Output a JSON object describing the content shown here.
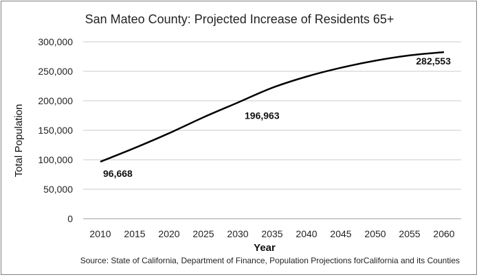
{
  "chart_data": {
    "type": "line",
    "title": "San Mateo County: Projected Increase of Residents 65+",
    "xlabel": "Year",
    "ylabel": "Total Population",
    "x": [
      2010,
      2015,
      2020,
      2025,
      2030,
      2035,
      2040,
      2045,
      2050,
      2055,
      2060
    ],
    "series": [
      {
        "values": [
          96668,
          120000,
          145000,
          172000,
          196963,
          222000,
          241000,
          256000,
          268000,
          277000,
          282553
        ],
        "color": "#000000"
      }
    ],
    "ylim": [
      0,
      300000
    ],
    "yticks": [
      0,
      50000,
      100000,
      150000,
      200000,
      250000,
      300000
    ],
    "ytick_labels": [
      "0",
      "50,000",
      "100,000",
      "150,000",
      "200,000",
      "250,000",
      "300,000"
    ],
    "xtick_labels": [
      "2010",
      "2015",
      "2020",
      "2025",
      "2030",
      "2035",
      "2040",
      "2045",
      "2050",
      "2055",
      "2060"
    ],
    "data_labels": [
      {
        "x": 2010,
        "text": "96,668"
      },
      {
        "x": 2030,
        "text": "196,963"
      },
      {
        "x": 2060,
        "text": "282,553"
      }
    ],
    "grid": true,
    "legend": "none",
    "source": "Source: State of California, Department of Finance, Population Projections forCalifornia and its Counties"
  }
}
